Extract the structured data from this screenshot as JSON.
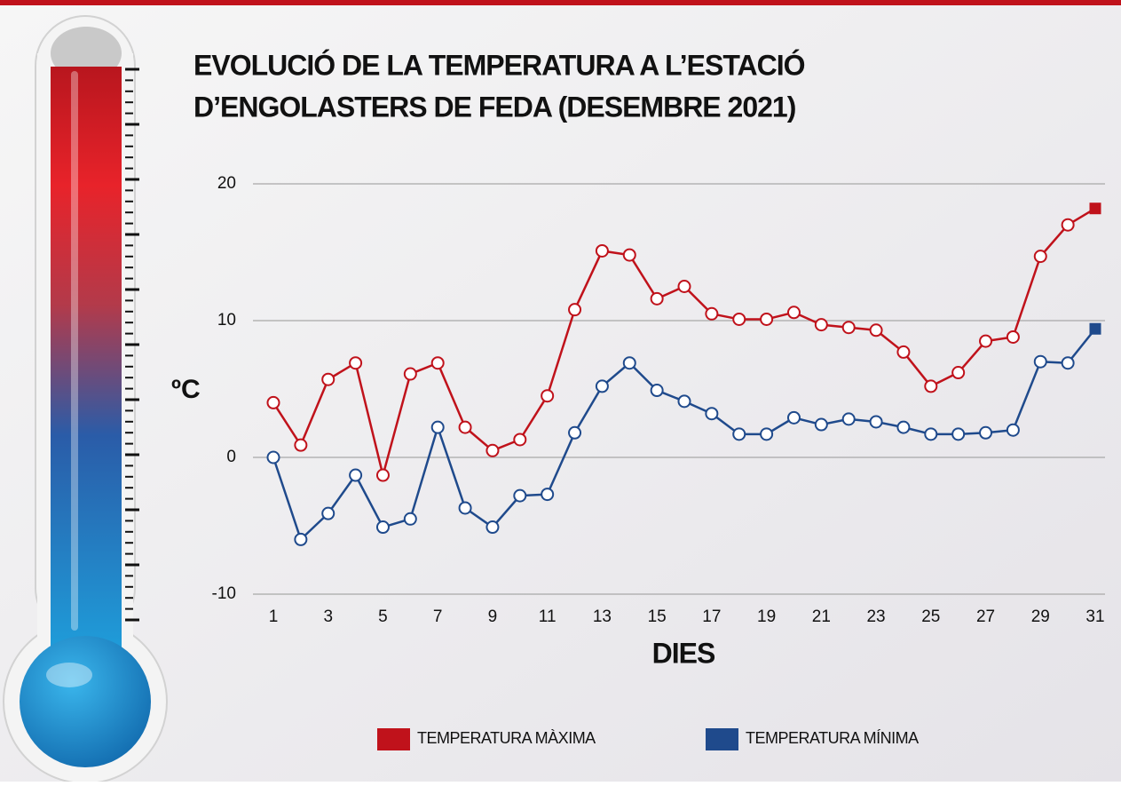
{
  "chart_data": {
    "type": "line",
    "title": [
      "EVOLUCIÓ DE LA TEMPERATURA A L’ESTACIÓ",
      "D’ENGOLASTERS DE FEDA (DESEMBRE 2021)"
    ],
    "x_label": "DIES",
    "y_label": "ºC",
    "x": [
      1,
      2,
      3,
      4,
      5,
      6,
      7,
      8,
      9,
      10,
      11,
      12,
      13,
      14,
      15,
      16,
      17,
      18,
      19,
      20,
      21,
      22,
      23,
      24,
      25,
      26,
      27,
      28,
      29,
      30,
      31
    ],
    "series": [
      {
        "name": "TEMPERATURA MÀXIMA",
        "color": "#c0121b",
        "values": [
          4.0,
          0.9,
          5.7,
          6.9,
          -1.3,
          6.1,
          6.9,
          2.2,
          0.5,
          1.3,
          4.5,
          10.8,
          15.1,
          14.8,
          11.6,
          12.5,
          10.5,
          10.1,
          10.1,
          10.6,
          9.7,
          9.5,
          9.3,
          7.7,
          5.2,
          6.2,
          8.5,
          8.8,
          14.7,
          17.0,
          18.2
        ]
      },
      {
        "name": "TEMPERATURA MÍNIMA",
        "color": "#1f4a8c",
        "values": [
          0.0,
          -6.0,
          -4.1,
          -1.3,
          -5.1,
          -4.5,
          2.2,
          -3.7,
          -5.1,
          -2.8,
          -2.7,
          1.8,
          5.2,
          6.9,
          4.9,
          4.1,
          3.2,
          1.7,
          1.7,
          2.9,
          2.4,
          2.8,
          2.6,
          2.2,
          1.7,
          1.7,
          1.8,
          2.0,
          7.0,
          6.9,
          9.4
        ]
      }
    ],
    "xlim": [
      1,
      31
    ],
    "xticks": [
      1,
      3,
      5,
      7,
      9,
      11,
      13,
      15,
      17,
      19,
      21,
      23,
      25,
      27,
      29,
      31
    ],
    "ylim": [
      -10,
      20
    ],
    "yticks": [
      -10,
      0,
      10,
      20
    ],
    "grid": true,
    "marker": "circle",
    "end_marker": "square"
  }
}
